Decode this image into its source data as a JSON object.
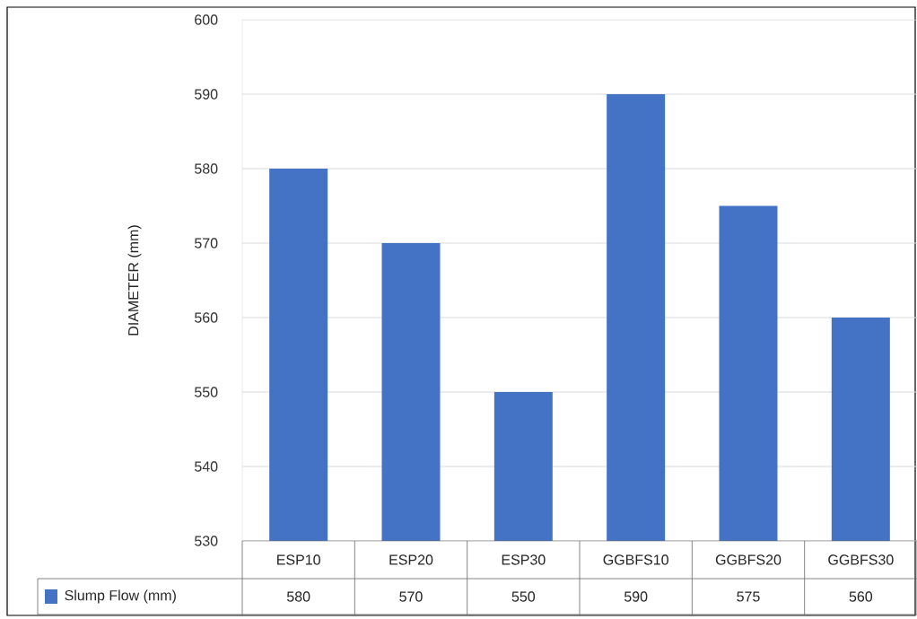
{
  "chart_data": {
    "type": "bar",
    "ylabel": "DIAMETER (mm)",
    "categories": [
      "ESP10",
      "ESP20",
      "ESP30",
      "GGBFS10",
      "GGBFS20",
      "GGBFS30"
    ],
    "series": [
      {
        "name": "Slump Flow (mm)",
        "color": "#4472c4",
        "values": [
          580,
          570,
          550,
          590,
          575,
          560
        ],
        "value_labels": [
          "580",
          "570",
          "550",
          "590",
          "575",
          "560"
        ]
      }
    ],
    "ylim": [
      530,
      600
    ],
    "yticks": [
      530,
      540,
      550,
      560,
      570,
      580,
      590,
      600
    ],
    "grid": "y",
    "legend": "bottom"
  }
}
